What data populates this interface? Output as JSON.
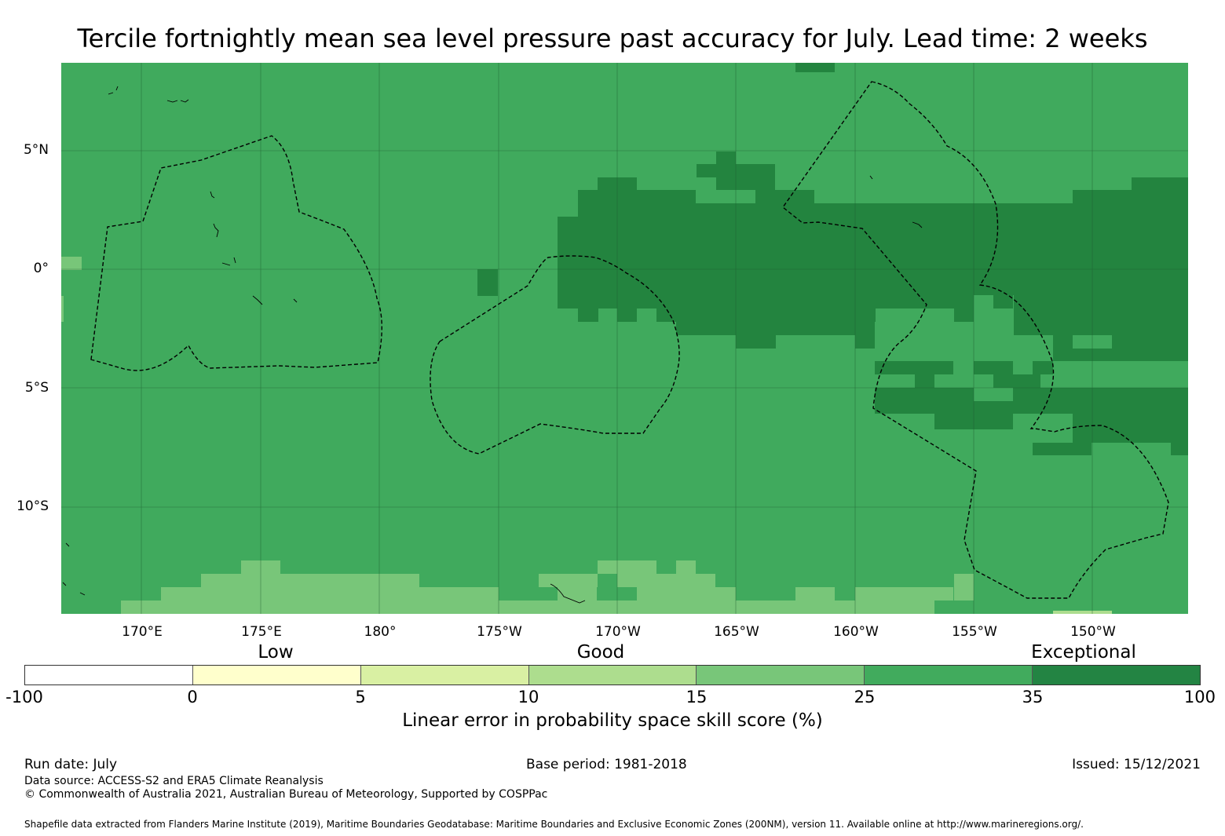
{
  "title": "Tercile fortnightly mean sea level pressure past accuracy for July. Lead time: 2 weeks",
  "map": {
    "lat_labels": [
      "5°N",
      "0°",
      "5°S",
      "10°S"
    ],
    "lon_labels": [
      "170°E",
      "175°E",
      "180°",
      "175°W",
      "170°W",
      "165°W",
      "160°W",
      "155°W",
      "150°W"
    ],
    "colors": {
      "band_25_35": "#40aa5d",
      "band_35_100": "#23843f",
      "band_15_25": "#78c679",
      "band_10_15": "#addd8e"
    }
  },
  "colorbar": {
    "categories": [
      "Low",
      "Good",
      "Exceptional"
    ],
    "ticks": [
      "-100",
      "0",
      "5",
      "10",
      "15",
      "25",
      "35",
      "100"
    ],
    "colors": [
      "#ffffff",
      "#ffffcc",
      "#d9f0a3",
      "#addd8e",
      "#78c679",
      "#41ab5d",
      "#238443"
    ],
    "label": "Linear error in probability space skill score (%)"
  },
  "footer": {
    "run_date": "Run date: July",
    "base_period": "Base period: 1981-2018",
    "issued": "Issued: 15/12/2021",
    "data_source": "Data source: ACCESS-S2 and ERA5 Climate Reanalysis",
    "copyright": "© Commonwealth of Australia 2021, Australian Bureau of Meteorology, Supported by COSPPac",
    "shapefile": "Shapefile data extracted from Flanders Marine Institute (2019), Maritime Boundaries Geodatabase: Maritime Boundaries and Exclusive Economic Zones (200NM), version 11. Available online at http://www.marineregions.org/."
  }
}
